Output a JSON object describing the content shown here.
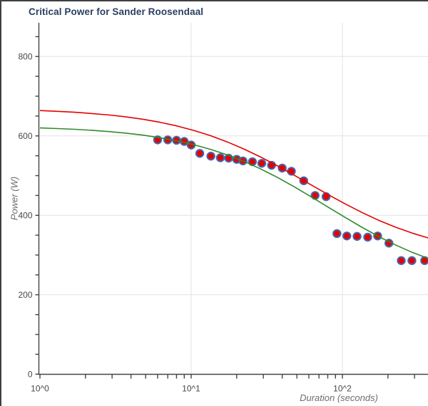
{
  "chart": {
    "title": "Critical Power for Sander Roosendaal",
    "xlabel": "Duration (seconds)",
    "ylabel": "Power (W)"
  },
  "chart_data": {
    "type": "scatter",
    "title": "Critical Power for Sander Roosendaal",
    "xlabel": "Duration (seconds)",
    "ylabel": "Power (W)",
    "xscale": "log",
    "xlim": [
      1,
      376
    ],
    "ylim": [
      0,
      885
    ],
    "grid": true,
    "colors": {
      "grid": "#e3e3e3",
      "axis": "#444444",
      "tick_label": "#474747",
      "marker_fill": "#e60000",
      "marker_stroke": "#4169b0",
      "red_curve": "#e60000",
      "green_curve": "#2e8b2e",
      "title": "#2a3f5f",
      "axis_title": "#6e6e6e"
    },
    "x_tick_labels": [
      {
        "value": 1,
        "label": "10^0"
      },
      {
        "value": 10,
        "label": "10^1"
      },
      {
        "value": 100,
        "label": "10^2"
      }
    ],
    "y_tick_labels": [
      {
        "value": 0,
        "label": "0"
      },
      {
        "value": 200,
        "label": "200"
      },
      {
        "value": 400,
        "label": "400"
      },
      {
        "value": 600,
        "label": "600"
      },
      {
        "value": 800,
        "label": "800"
      }
    ],
    "y_tick_minor_step": 50,
    "y_tick_minor_max": 850,
    "series": [
      {
        "name": "measured-power-points",
        "type": "scatter",
        "x": [
          6,
          7,
          8,
          9,
          10,
          11.4,
          13.5,
          15.6,
          17.7,
          20,
          22,
          25.4,
          29.3,
          34,
          40,
          46,
          55.5,
          66,
          78,
          92,
          107,
          125,
          147,
          171,
          203,
          245,
          288,
          350
        ],
        "y": [
          590,
          590,
          589,
          586,
          577,
          556,
          549,
          545,
          544,
          541,
          537,
          535,
          531,
          526,
          519,
          511,
          487,
          450,
          447,
          354,
          348,
          347,
          345,
          348,
          330,
          286,
          286,
          286
        ]
      },
      {
        "name": "green-model-curve",
        "type": "line",
        "x": [
          1,
          1.3,
          1.7,
          2.2,
          2.9,
          3.7,
          4.8,
          6.2,
          8,
          10.4,
          13.4,
          17.3,
          22.4,
          28.9,
          37.3,
          48.2,
          62.3,
          80.5,
          104,
          134.3,
          173.5,
          224.1,
          289.5,
          376
        ],
        "y": [
          620.0,
          618.5,
          616.6,
          614.1,
          610.7,
          607.0,
          601.9,
          595.5,
          587.8,
          578.0,
          566.3,
          552.2,
          535.6,
          516.6,
          495.2,
          471.6,
          446.4,
          420.7,
          394.9,
          370.0,
          346.7,
          325.6,
          306.8,
          290.3
        ]
      },
      {
        "name": "red-model-curve",
        "type": "line",
        "x": [
          1,
          1.3,
          1.7,
          2.2,
          2.9,
          3.7,
          4.8,
          6.2,
          8,
          10.4,
          13.4,
          17.3,
          22.4,
          28.9,
          37.3,
          48.2,
          62.3,
          80.5,
          104,
          134.3,
          173.5,
          224.1,
          289.5,
          376
        ],
        "y": [
          663.8,
          661.9,
          659.5,
          656.4,
          652.5,
          647.9,
          641.9,
          634.4,
          625.3,
          613.8,
          600.7,
          585.0,
          566.7,
          546.5,
          524.3,
          500.7,
          476.4,
          452.2,
          429.0,
          407.4,
          387.7,
          370.2,
          355.2,
          342.3
        ]
      }
    ]
  }
}
